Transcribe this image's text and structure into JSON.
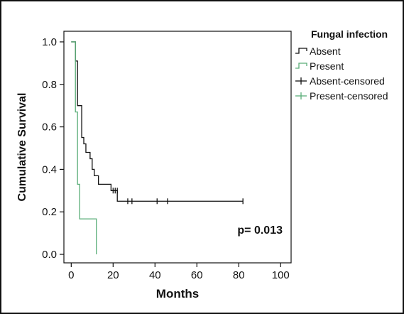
{
  "chart_data": {
    "type": "line",
    "title": "",
    "xlabel": "Months",
    "ylabel": "Cumulative Survival",
    "xlim": [
      -3.5,
      105
    ],
    "ylim": [
      -0.04,
      1.05
    ],
    "xticks": [
      0,
      20,
      40,
      60,
      80,
      100
    ],
    "yticks": [
      0.0,
      0.2,
      0.4,
      0.6,
      0.8,
      1.0
    ],
    "xtick_labels": [
      "0",
      "20",
      "40",
      "60",
      "80",
      "100"
    ],
    "ytick_labels": [
      "0.0",
      "0.2",
      "0.4",
      "0.6",
      "0.8",
      "1.0"
    ],
    "grid": false,
    "annotation": "p= 0.013",
    "legend": {
      "title": "Fungal infection",
      "placement": "right",
      "entries": [
        "Absent",
        "Present",
        "Absent-censored",
        "Present-censored"
      ]
    },
    "series": [
      {
        "name": "Absent",
        "style": "step",
        "color": "#111111",
        "points": [
          [
            0,
            1.0
          ],
          [
            2,
            1.0
          ],
          [
            2,
            0.91
          ],
          [
            3,
            0.91
          ],
          [
            3,
            0.7
          ],
          [
            5,
            0.7
          ],
          [
            5,
            0.55
          ],
          [
            6,
            0.55
          ],
          [
            6,
            0.52
          ],
          [
            7,
            0.52
          ],
          [
            7,
            0.48
          ],
          [
            9,
            0.48
          ],
          [
            9,
            0.45
          ],
          [
            10,
            0.45
          ],
          [
            10,
            0.4
          ],
          [
            11,
            0.4
          ],
          [
            11,
            0.37
          ],
          [
            13,
            0.37
          ],
          [
            13,
            0.33
          ],
          [
            19,
            0.33
          ],
          [
            19,
            0.3
          ],
          [
            22,
            0.3
          ],
          [
            22,
            0.25
          ],
          [
            82,
            0.25
          ]
        ],
        "censored": [
          [
            20,
            0.3
          ],
          [
            21,
            0.3
          ],
          [
            22,
            0.3
          ],
          [
            27,
            0.25
          ],
          [
            29,
            0.25
          ],
          [
            41,
            0.25
          ],
          [
            46,
            0.25
          ],
          [
            82,
            0.25
          ]
        ]
      },
      {
        "name": "Present",
        "style": "step",
        "color": "#5aae78",
        "points": [
          [
            0,
            1.0
          ],
          [
            2,
            1.0
          ],
          [
            2,
            0.67
          ],
          [
            3,
            0.67
          ],
          [
            3,
            0.33
          ],
          [
            4,
            0.33
          ],
          [
            4,
            0.167
          ],
          [
            12,
            0.167
          ],
          [
            12,
            0.0
          ]
        ],
        "censored": []
      }
    ]
  }
}
